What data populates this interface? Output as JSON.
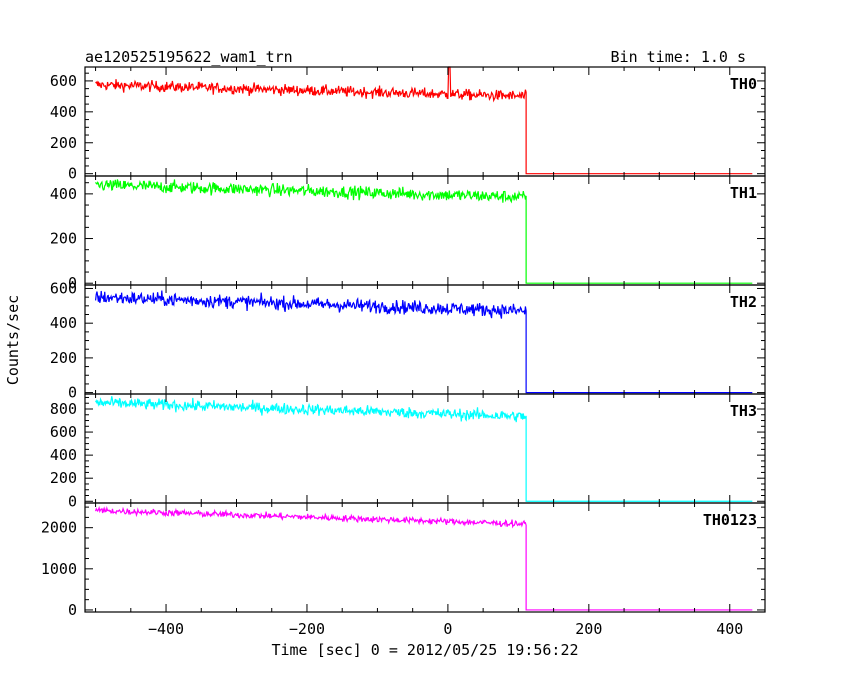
{
  "chart_data": {
    "type": "line",
    "title": "ae120525195622_wam1_trn",
    "bin_time": "Bin time: 1.0 s",
    "xlabel": "Time [sec] 0 = 2012/05/25 19:56:22",
    "ylabel": "Counts/sec",
    "xlim": [
      -515,
      450
    ],
    "x_ticks": [
      -400,
      -200,
      0,
      200,
      400
    ],
    "data_start": -500,
    "data_end": 432,
    "drop_time": 111,
    "panels": [
      {
        "name": "TH0",
        "color": "#ff0000",
        "ylim": [
          -15,
          690
        ],
        "y_ticks": [
          0,
          200,
          400,
          600
        ],
        "level_start": 575,
        "level_end": 500,
        "noise": 25,
        "spike": {
          "x": 2,
          "value": 690
        }
      },
      {
        "name": "TH1",
        "color": "#00ff00",
        "ylim": [
          -8,
          480
        ],
        "y_ticks": [
          0,
          200,
          400
        ],
        "level_start": 440,
        "level_end": 385,
        "noise": 20
      },
      {
        "name": "TH2",
        "color": "#0000ff",
        "ylim": [
          -8,
          620
        ],
        "y_ticks": [
          0,
          200,
          400,
          600
        ],
        "level_start": 550,
        "level_end": 470,
        "noise": 28
      },
      {
        "name": "TH3",
        "color": "#00ffff",
        "ylim": [
          -15,
          930
        ],
        "y_ticks": [
          0,
          200,
          400,
          600,
          800
        ],
        "level_start": 855,
        "level_end": 735,
        "noise": 35
      },
      {
        "name": "TH0123",
        "color": "#ff00ff",
        "ylim": [
          -50,
          2600
        ],
        "y_ticks": [
          0,
          1000,
          2000
        ],
        "level_start": 2420,
        "level_end": 2090,
        "noise": 55
      }
    ]
  }
}
